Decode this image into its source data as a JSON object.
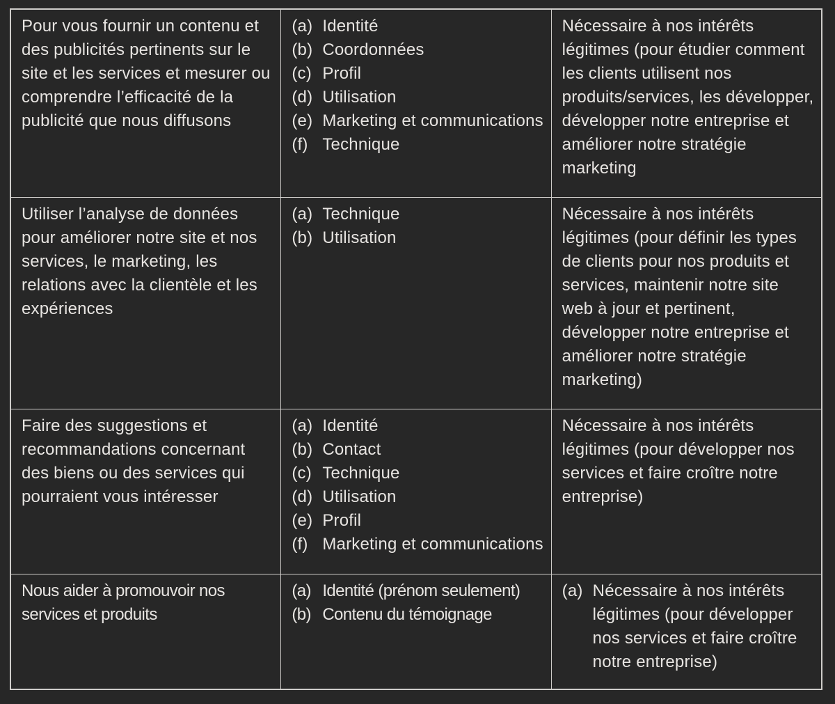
{
  "document": {
    "language": "fr",
    "kind": "privacy-policy-lawful-basis-table"
  },
  "theme": {
    "background": "#272727",
    "text_color": "#e7e4e1",
    "border_color": "#cfcdca"
  },
  "table": {
    "rows": [
      {
        "purpose": "Pour vous fournir un contenu et des publicités pertinents sur le site et les services et mesurer ou comprendre l’efficacité de la publicité que nous diffusons",
        "data_types": [
          {
            "marker": "(a)",
            "label": "Identité"
          },
          {
            "marker": "(b)",
            "label": "Coordonnées"
          },
          {
            "marker": "(c)",
            "label": "Profil"
          },
          {
            "marker": "(d)",
            "label": "Utilisation"
          },
          {
            "marker": "(e)",
            "label": "Marketing et communications"
          },
          {
            "marker": "(f)",
            "label": "Technique"
          }
        ],
        "lawful_basis": "Nécessaire à nos intérêts légitimes (pour étudier comment les clients utilisent nos produits/services, les développer, développer notre entreprise et améliorer notre stratégie marketing"
      },
      {
        "purpose": "Utiliser l’analyse de données pour améliorer notre site et nos services, le marketing, les relations avec la clientèle et les expériences",
        "data_types": [
          {
            "marker": "(a)",
            "label": "Technique"
          },
          {
            "marker": "(b)",
            "label": "Utilisation"
          }
        ],
        "lawful_basis": "Nécessaire à nos intérêts légitimes (pour définir les types de clients pour nos produits et services, maintenir notre site web à jour et pertinent, développer notre entreprise et améliorer notre stratégie marketing)"
      },
      {
        "purpose": "Faire des suggestions et recommandations concernant des biens ou des services qui pourraient vous intéresser",
        "data_types": [
          {
            "marker": "(a)",
            "label": "Identité"
          },
          {
            "marker": "(b)",
            "label": "Contact"
          },
          {
            "marker": "(c)",
            "label": "Technique"
          },
          {
            "marker": "(d)",
            "label": "Utilisation"
          },
          {
            "marker": "(e)",
            "label": "Profil"
          },
          {
            "marker": "(f)",
            "label": "Marketing et communications"
          }
        ],
        "lawful_basis": "Nécessaire à nos intérêts légitimes (pour développer nos services et faire croître notre entreprise)"
      },
      {
        "purpose": "Nous aider à promouvoir nos services et produits",
        "data_types": [
          {
            "marker": "(a)",
            "label": "Identité (prénom seulement)"
          },
          {
            "marker": "(b)",
            "label": "Contenu du témoignage"
          }
        ],
        "lawful_basis_marker": "(a)",
        "lawful_basis": "Nécessaire à nos intérêts légitimes (pour développer nos services et faire croître notre entreprise)"
      }
    ]
  }
}
